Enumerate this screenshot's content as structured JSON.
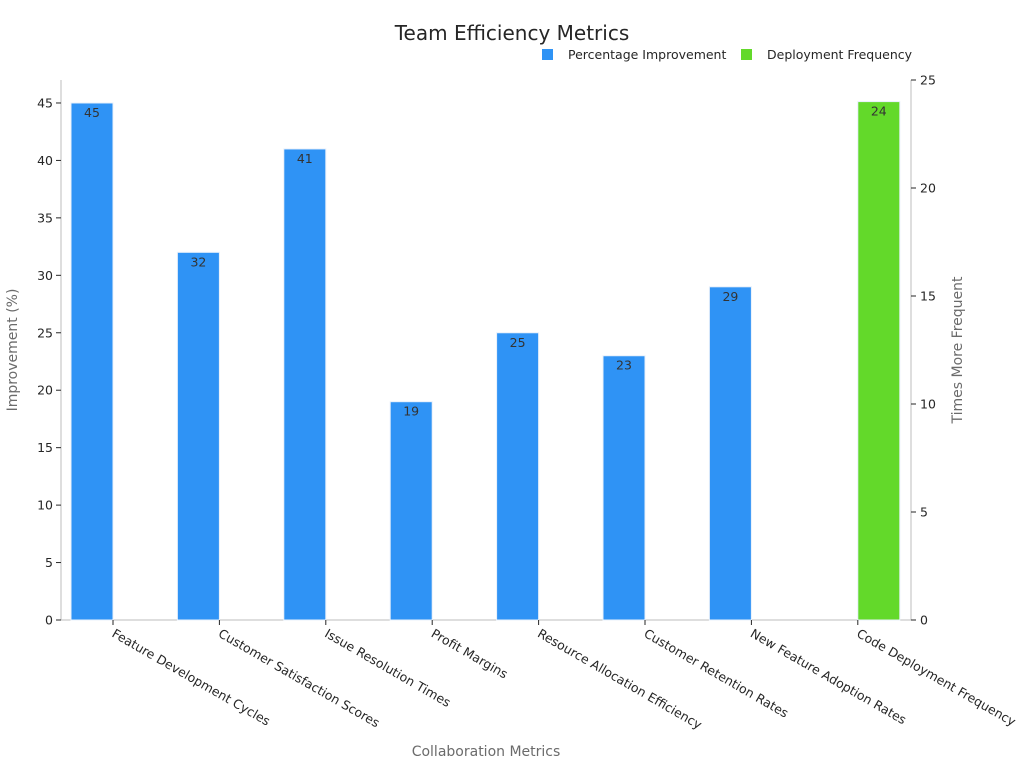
{
  "chart_data": {
    "type": "bar",
    "title": "Team Efficiency Metrics",
    "xlabel": "Collaboration Metrics",
    "ylabel": "Improvement (%)",
    "y2label": "Times More Frequent",
    "categories": [
      "Feature Development Cycles",
      "Customer Satisfaction Scores",
      "Issue Resolution Times",
      "Profit Margins",
      "Resource Allocation Efficiency",
      "Customer Retention Rates",
      "New Feature Adoption Rates",
      "Code Deployment Frequency"
    ],
    "series": [
      {
        "name": "Percentage Improvement",
        "axis": "left",
        "color": "#2f93f5",
        "values": [
          45,
          32,
          41,
          19,
          25,
          23,
          29,
          null
        ]
      },
      {
        "name": "Deployment Frequency",
        "axis": "right",
        "color": "#63d92a",
        "values": [
          null,
          null,
          null,
          null,
          null,
          null,
          null,
          24
        ]
      }
    ],
    "ylim": [
      0,
      47
    ],
    "y2lim": [
      0,
      25
    ],
    "yticks": [
      0,
      5,
      10,
      15,
      20,
      25,
      30,
      35,
      40,
      45
    ],
    "y2ticks": [
      0,
      5,
      10,
      15,
      20,
      25
    ],
    "grid": false,
    "legend_position": "top-right"
  }
}
